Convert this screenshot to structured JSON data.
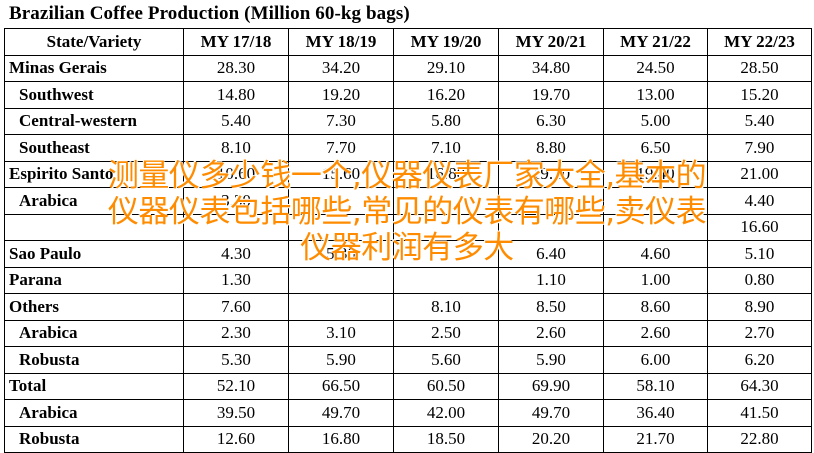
{
  "title": "Brazilian Coffee Production (Million 60-kg bags)",
  "table": {
    "header": [
      "State/Variety",
      "MY 17/18",
      "MY 18/19",
      "MY 19/20",
      "MY 20/21",
      "MY 21/22",
      "MY 22/23"
    ],
    "rows": [
      {
        "label": "Minas Gerais",
        "sub": false,
        "values": [
          "28.30",
          "34.20",
          "29.10",
          "34.80",
          "24.50",
          "28.50"
        ]
      },
      {
        "label": "Southwest",
        "sub": true,
        "values": [
          "14.80",
          "19.20",
          "16.20",
          "19.70",
          "13.00",
          "15.20"
        ]
      },
      {
        "label": "Central-western",
        "sub": true,
        "values": [
          "5.40",
          "7.30",
          "5.80",
          "6.30",
          "5.00",
          "5.40"
        ]
      },
      {
        "label": "Southeast",
        "sub": true,
        "values": [
          "8.10",
          "7.70",
          "7.10",
          "8.80",
          "6.50",
          "7.90"
        ]
      },
      {
        "label": "Espirito Santo",
        "sub": false,
        "values": [
          "10.60",
          "15.60",
          "16.80",
          "19.10",
          "19.40",
          "21.00"
        ]
      },
      {
        "label": "Arabica",
        "sub": true,
        "values": [
          "3.30",
          "",
          "",
          "",
          "",
          "4.40"
        ]
      },
      {
        "label": "",
        "sub": true,
        "values": [
          "",
          "",
          "",
          "",
          "",
          "16.60"
        ]
      },
      {
        "label": "Sao Paulo",
        "sub": false,
        "values": [
          "4.30",
          "5.30",
          "",
          "6.40",
          "4.60",
          "5.10"
        ]
      },
      {
        "label": "Parana",
        "sub": false,
        "values": [
          "1.30",
          "",
          "",
          "1.10",
          "1.00",
          "0.80"
        ]
      },
      {
        "label": "Others",
        "sub": false,
        "values": [
          "7.60",
          "",
          "8.10",
          "8.50",
          "8.60",
          "8.90"
        ]
      },
      {
        "label": "Arabica",
        "sub": true,
        "values": [
          "2.30",
          "3.10",
          "2.50",
          "2.60",
          "2.60",
          "2.70"
        ]
      },
      {
        "label": "Robusta",
        "sub": true,
        "values": [
          "5.30",
          "5.90",
          "5.60",
          "5.90",
          "6.00",
          "6.20"
        ]
      },
      {
        "label": "Total",
        "sub": false,
        "values": [
          "52.10",
          "66.50",
          "60.50",
          "69.90",
          "58.10",
          "64.30"
        ]
      },
      {
        "label": "Arabica",
        "sub": true,
        "values": [
          "39.50",
          "49.70",
          "42.00",
          "49.70",
          "36.40",
          "41.50"
        ]
      },
      {
        "label": "Robusta",
        "sub": true,
        "values": [
          "12.60",
          "16.80",
          "18.50",
          "20.20",
          "21.70",
          "22.80"
        ]
      }
    ]
  },
  "watermark": [
    "测量仪多少钱一个,仪器仪表厂家大全,基本的",
    "仪器仪表包括哪些,常见的仪表有哪些,卖仪表",
    "仪器利润有多大"
  ]
}
